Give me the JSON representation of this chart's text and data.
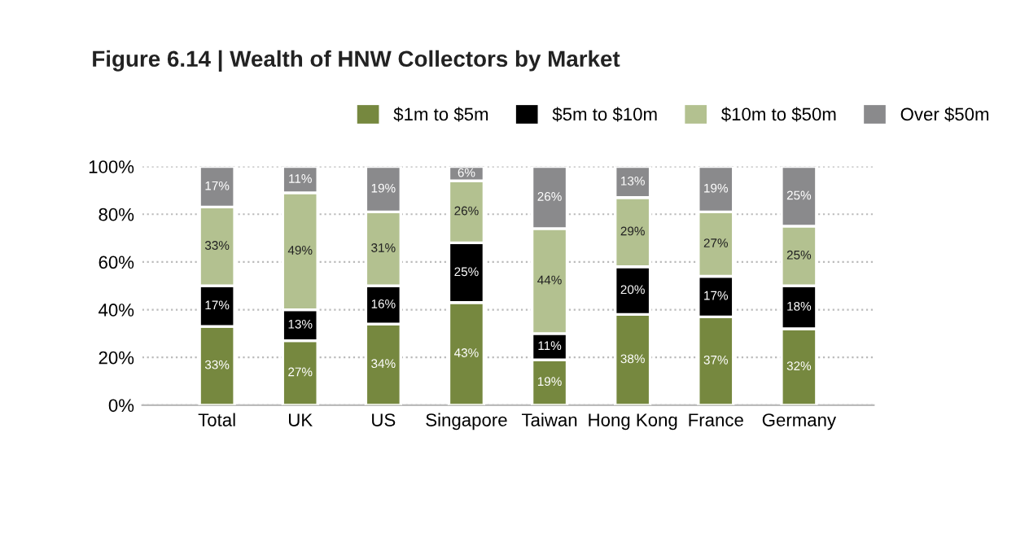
{
  "chart_data": {
    "type": "bar",
    "stacked": true,
    "title": "Figure 6.14 | Wealth of HNW Collectors by Market",
    "categories": [
      "Total",
      "UK",
      "US",
      "Singapore",
      "Taiwan",
      "Hong Kong",
      "France",
      "Germany"
    ],
    "series": [
      {
        "name": "$1m to $5m",
        "color": "#76883f",
        "values": [
          33,
          27,
          34,
          43,
          19,
          38,
          37,
          32
        ],
        "value_labels": [
          "33%",
          "27%",
          "34%",
          "43%",
          "19%",
          "38%",
          "37%",
          "32%"
        ]
      },
      {
        "name": "$5m to $10m",
        "color": "#000000",
        "values": [
          17,
          13,
          16,
          25,
          11,
          20,
          17,
          18
        ],
        "value_labels": [
          "17%",
          "13%",
          "16%",
          "25%",
          "11%",
          "20%",
          "17%",
          "18%"
        ]
      },
      {
        "name": "$10m to $50m",
        "color": "#b3c190",
        "values": [
          33,
          49,
          31,
          26,
          44,
          29,
          27,
          25
        ],
        "value_labels": [
          "33%",
          "49%",
          "31%",
          "26%",
          "44%",
          "29%",
          "27%",
          "25%"
        ]
      },
      {
        "name": "Over $50m",
        "color": "#8a8a8c",
        "values": [
          17,
          11,
          19,
          6,
          26,
          13,
          19,
          25
        ],
        "value_labels": [
          "17%",
          "11%",
          "19%",
          "6%",
          "26%",
          "13%",
          "19%",
          "25%"
        ]
      }
    ],
    "ylim": [
      0,
      100
    ],
    "yticks": [
      {
        "value": 0,
        "label": "0%"
      },
      {
        "value": 20,
        "label": "20%"
      },
      {
        "value": 40,
        "label": "40%"
      },
      {
        "value": 60,
        "label": "60%"
      },
      {
        "value": 80,
        "label": "80%"
      },
      {
        "value": 100,
        "label": "100%"
      }
    ],
    "grid": "y",
    "legend": "top right"
  }
}
